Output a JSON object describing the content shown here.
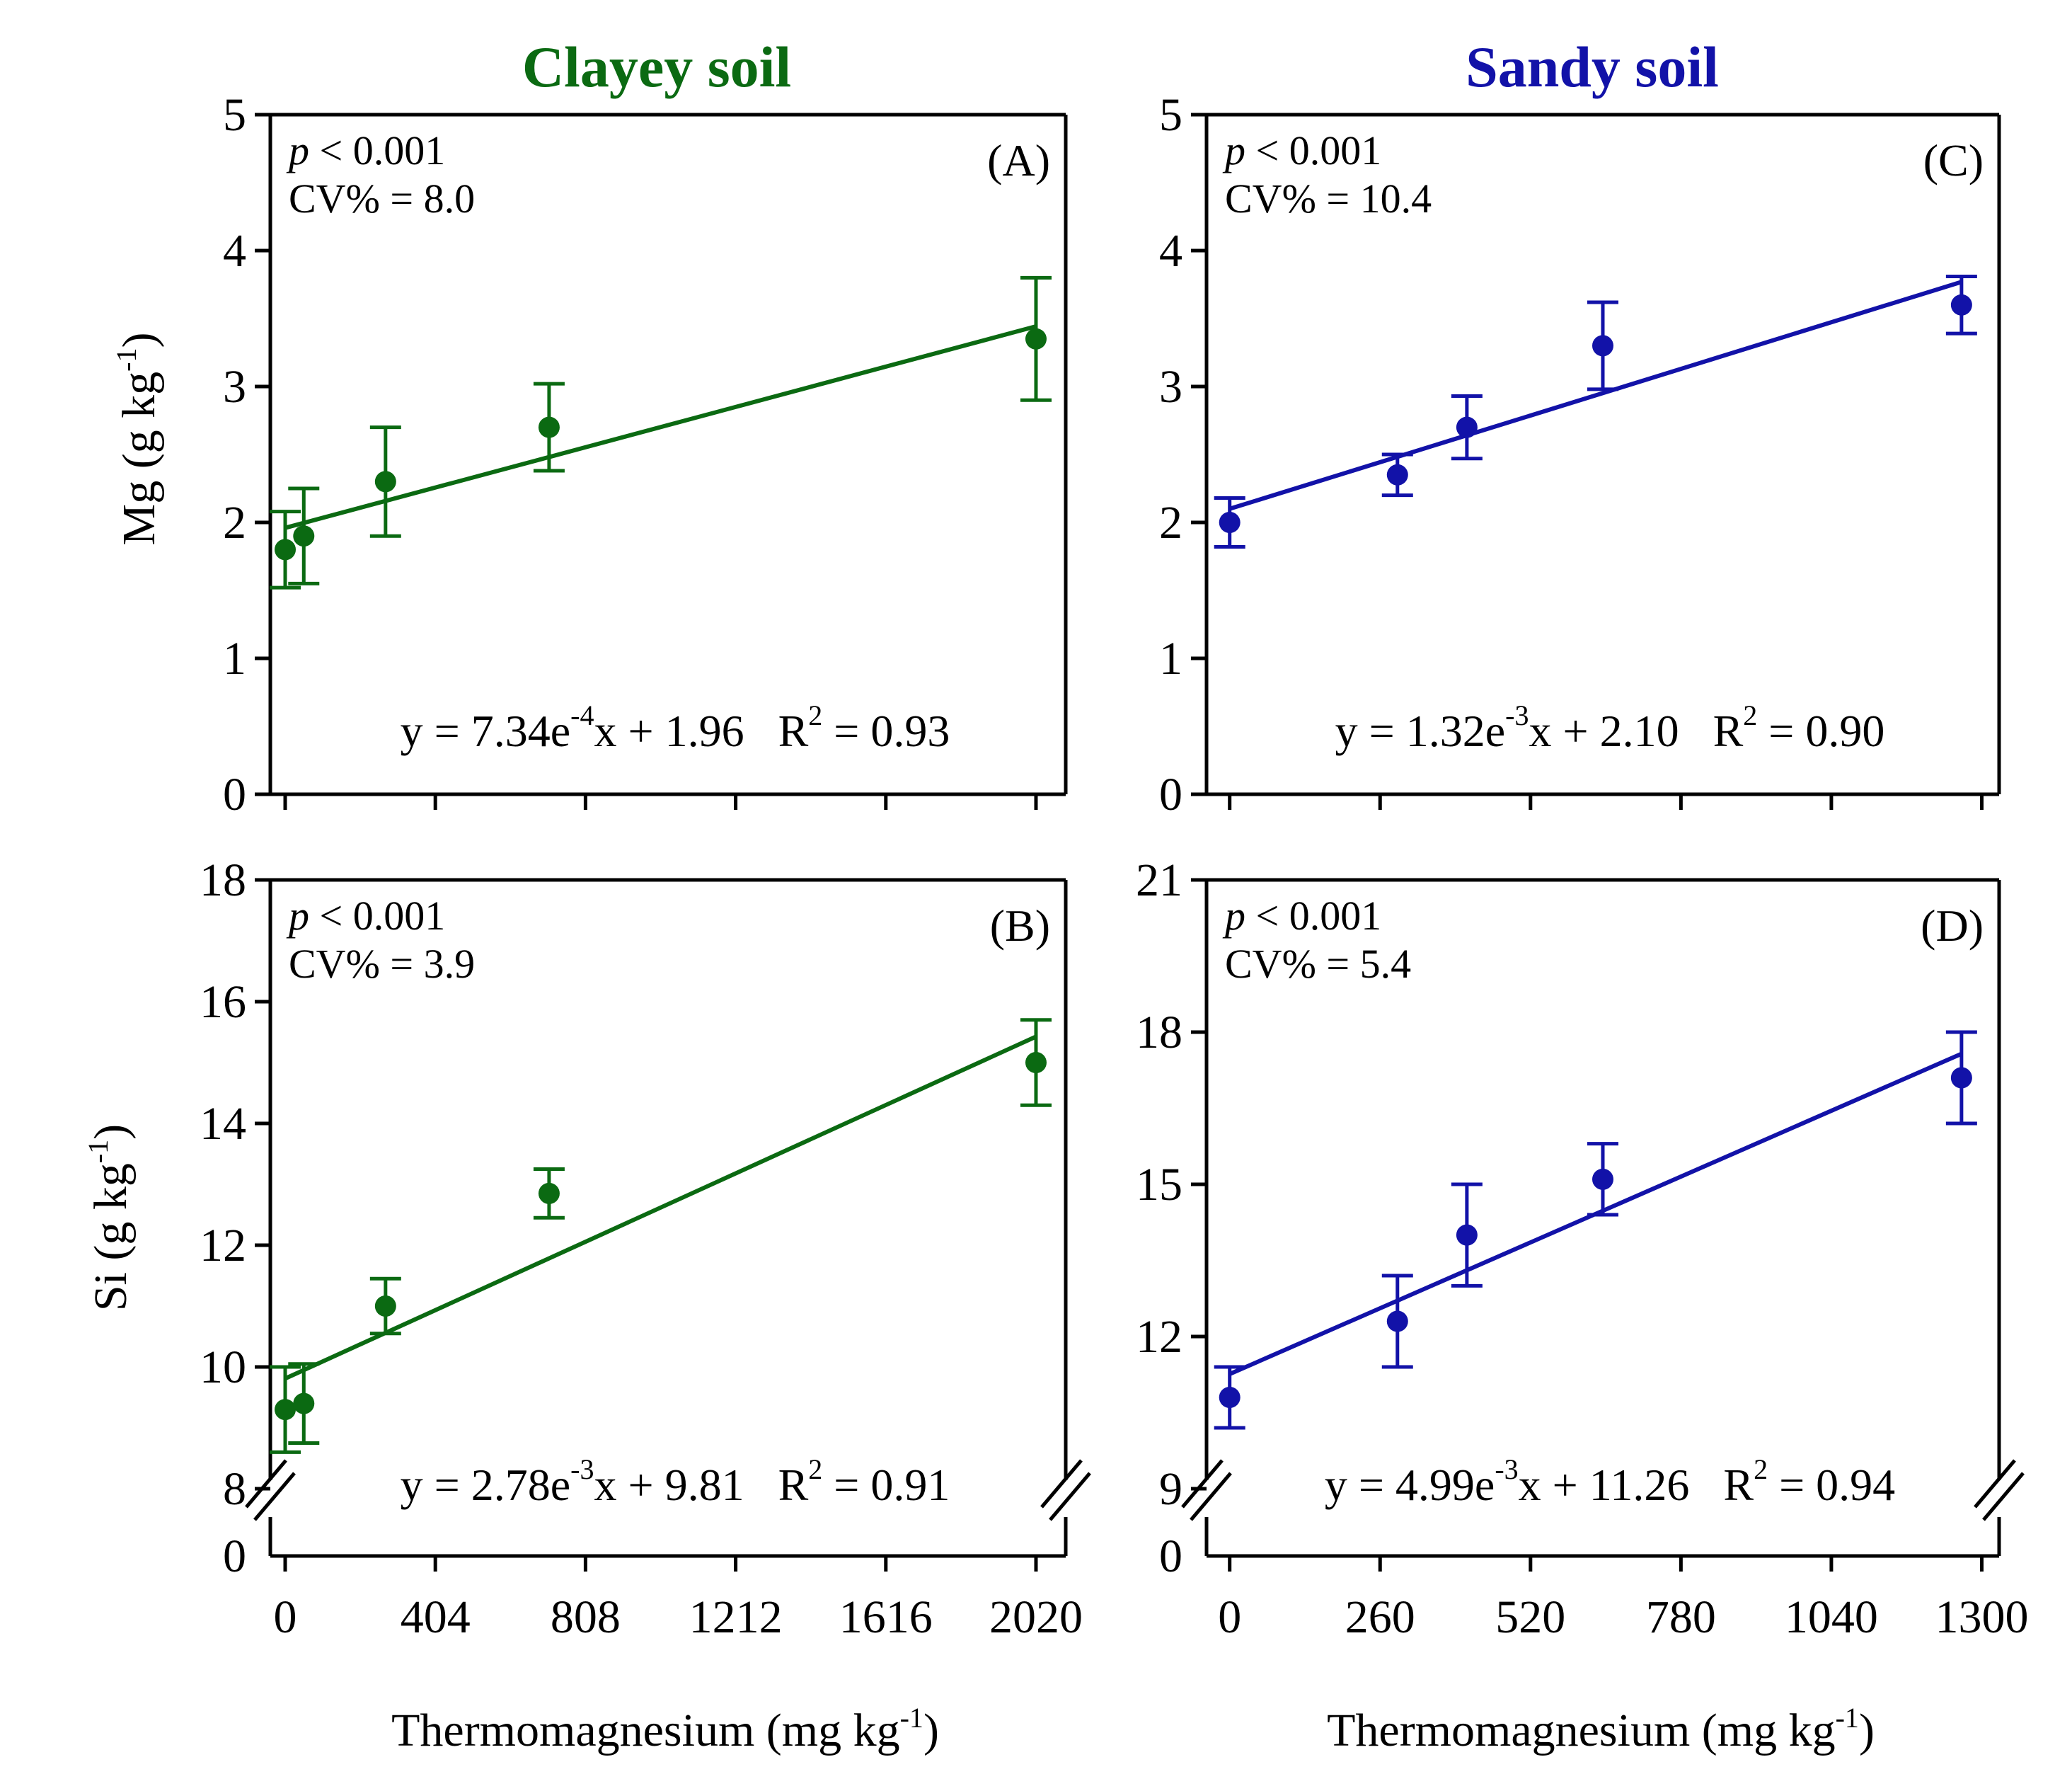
{
  "colors": {
    "clayey": "#0b6a12",
    "sandy": "#1212a8",
    "axis": "#000000"
  },
  "column_titles": {
    "clayey": "Clayey soil",
    "sandy": "Sandy soil"
  },
  "xlabel": {
    "main": "Thermomagnesium (mg kg",
    "sup": "-1",
    "close": ")"
  },
  "ylabels": {
    "mg": {
      "main": "Mg (g kg",
      "sup": "-1",
      "close": ")"
    },
    "si": {
      "main": "Si (g kg",
      "sup": "-1",
      "close": ")"
    }
  },
  "chart_data": [
    {
      "id": "A",
      "panel_label": "(A)",
      "soil": "Clayey soil",
      "type": "scatter",
      "xlabel": "Thermomagnesium (mg kg-1)",
      "ylabel": "Mg (g kg-1)",
      "xlim": [
        -40,
        2100
      ],
      "ylim": [
        0,
        5
      ],
      "xticks": [
        0,
        404,
        808,
        1212,
        1616,
        2020
      ],
      "show_xtick_labels": false,
      "yticks": [
        0,
        1,
        2,
        3,
        4,
        5
      ],
      "ytick_labels": [
        "0",
        "1",
        "2",
        "3",
        "4",
        "5"
      ],
      "axis_break": false,
      "x": [
        0,
        50,
        270,
        710,
        2020
      ],
      "y": [
        1.8,
        1.9,
        2.3,
        2.7,
        3.35
      ],
      "err": [
        0.28,
        0.35,
        0.4,
        0.32,
        0.45
      ],
      "fit": {
        "slope": 0.000734,
        "intercept": 1.96,
        "x_range": [
          0,
          2020
        ]
      },
      "annotation": {
        "p": "p",
        "p_rest": " < 0.001",
        "cv": "CV% = 8.0"
      },
      "equation": {
        "part1": "y = 7.34e",
        "exp": "-4",
        "part2": "x + 1.96   R",
        "r2_sup": "2",
        "part3": " = 0.93"
      }
    },
    {
      "id": "B",
      "panel_label": "(B)",
      "soil": "Clayey soil",
      "type": "scatter",
      "xlabel": "Thermomagnesium (mg kg-1)",
      "ylabel": "Si (g kg-1)",
      "xlim": [
        -40,
        2100
      ],
      "ylim": [
        8,
        18
      ],
      "xticks": [
        0,
        404,
        808,
        1212,
        1616,
        2020
      ],
      "show_xtick_labels": true,
      "xtick_labels": [
        "0",
        "404",
        "808",
        "1212",
        "1616",
        "2020"
      ],
      "yticks": [
        8,
        10,
        12,
        14,
        16,
        18
      ],
      "ytick_labels": [
        "8",
        "10",
        "12",
        "14",
        "16",
        "18"
      ],
      "axis_break": true,
      "below_break_label": "0",
      "x": [
        0,
        50,
        270,
        710,
        2020
      ],
      "y": [
        9.3,
        9.4,
        11.0,
        12.85,
        15.0
      ],
      "err": [
        0.7,
        0.65,
        0.45,
        0.4,
        0.7
      ],
      "fit": {
        "slope": 0.00278,
        "intercept": 9.81,
        "x_range": [
          0,
          2020
        ]
      },
      "annotation": {
        "p": "p",
        "p_rest": " < 0.001",
        "cv": "CV% = 3.9"
      },
      "equation": {
        "part1": "y = 2.78e",
        "exp": "-3",
        "part2": "x + 9.81   R",
        "r2_sup": "2",
        "part3": " = 0.91"
      }
    },
    {
      "id": "C",
      "panel_label": "(C)",
      "soil": "Sandy soil",
      "type": "scatter",
      "xlabel": "Thermomagnesium (mg kg-1)",
      "ylabel": "Mg (g kg-1)",
      "xlim": [
        -40,
        1330
      ],
      "ylim": [
        0,
        5
      ],
      "xticks": [
        0,
        260,
        520,
        780,
        1040,
        1300
      ],
      "show_xtick_labels": false,
      "yticks": [
        0,
        1,
        2,
        3,
        4,
        5
      ],
      "ytick_labels": [
        "0",
        "1",
        "2",
        "3",
        "4",
        "5"
      ],
      "axis_break": false,
      "x": [
        0,
        290,
        410,
        645,
        1265
      ],
      "y": [
        2.0,
        2.35,
        2.7,
        3.3,
        3.6
      ],
      "err": [
        0.18,
        0.15,
        0.23,
        0.32,
        0.21
      ],
      "fit": {
        "slope": 0.00132,
        "intercept": 2.1,
        "x_range": [
          0,
          1265
        ]
      },
      "annotation": {
        "p": "p",
        "p_rest": " < 0.001",
        "cv": "CV% = 10.4"
      },
      "equation": {
        "part1": "y = 1.32e",
        "exp": "-3",
        "part2": "x + 2.10   R",
        "r2_sup": "2",
        "part3": " = 0.90"
      }
    },
    {
      "id": "D",
      "panel_label": "(D)",
      "soil": "Sandy soil",
      "type": "scatter",
      "xlabel": "Thermomagnesium (mg kg-1)",
      "ylabel": "Si (g kg-1)",
      "xlim": [
        -40,
        1330
      ],
      "ylim": [
        9,
        21
      ],
      "xticks": [
        0,
        260,
        520,
        780,
        1040,
        1300
      ],
      "show_xtick_labels": true,
      "xtick_labels": [
        "0",
        "260",
        "520",
        "780",
        "1040",
        "1300"
      ],
      "yticks": [
        9,
        12,
        15,
        18,
        21
      ],
      "ytick_labels": [
        "9",
        "12",
        "15",
        "18",
        "21"
      ],
      "axis_break": true,
      "below_break_label": "0",
      "x": [
        0,
        290,
        410,
        645,
        1265
      ],
      "y": [
        10.8,
        12.3,
        14.0,
        15.1,
        17.1
      ],
      "err": [
        0.6,
        0.9,
        1.0,
        0.7,
        0.9
      ],
      "fit": {
        "slope": 0.00499,
        "intercept": 11.26,
        "x_range": [
          0,
          1265
        ]
      },
      "annotation": {
        "p": "p",
        "p_rest": " < 0.001",
        "cv": "CV% = 5.4"
      },
      "equation": {
        "part1": "y = 4.99e",
        "exp": "-3",
        "part2": "x + 11.26   R",
        "r2_sup": "2",
        "part3": " = 0.94"
      }
    }
  ]
}
